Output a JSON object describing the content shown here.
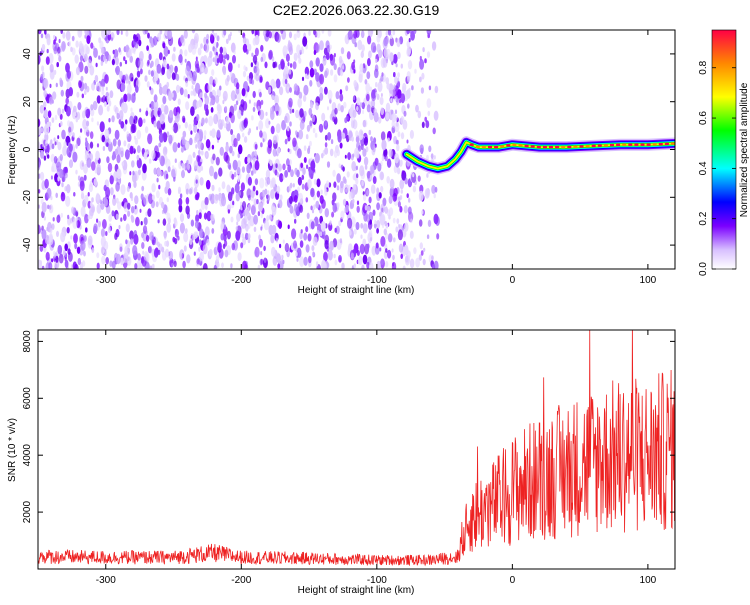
{
  "title": "C2E2.2026.063.22.30.G19",
  "chart_data": [
    {
      "type": "heatmap",
      "xlabel": "Height of straight line (km)",
      "ylabel": "Frequency (Hz)",
      "xlim": [
        -350,
        120
      ],
      "ylim": [
        -50,
        50
      ],
      "xticks": [
        -300,
        -200,
        -100,
        0,
        100
      ],
      "yticks": [
        -40,
        -20,
        0,
        20,
        40
      ],
      "colorbar": {
        "label": "Normalized spectral amplitude",
        "range": [
          0,
          0.95
        ],
        "ticks": [
          0.0,
          0.2,
          0.4,
          0.6,
          0.8
        ],
        "tick_labels": [
          "0.0",
          "0.2",
          "0.4",
          "0.6",
          "0.8"
        ],
        "colormap": [
          "#ffffff",
          "#c8a6ff",
          "#7a00ff",
          "#0000ff",
          "#00ffff",
          "#00ff00",
          "#ffff00",
          "#ff8800",
          "#ff0044"
        ]
      },
      "noise_region_x": [
        -350,
        -55
      ],
      "trace": {
        "x": [
          -78,
          -70,
          -62,
          -55,
          -48,
          -42,
          -38,
          -34,
          -30,
          -25,
          -20,
          -10,
          0,
          20,
          40,
          60,
          80,
          100,
          120
        ],
        "y": [
          -2,
          -5,
          -7,
          -8,
          -7,
          -4,
          -1,
          3,
          2,
          1,
          1,
          1,
          2,
          1,
          1,
          1.5,
          2,
          2,
          2.5
        ]
      }
    },
    {
      "type": "line",
      "xlabel": "Height of straight line (km)",
      "ylabel": "SNR (10 * v/v)",
      "xlim": [
        -350,
        120
      ],
      "ylim": [
        0,
        8400
      ],
      "xticks": [
        -300,
        -200,
        -100,
        0,
        100
      ],
      "yticks": [
        2000,
        4000,
        6000,
        8000
      ],
      "series": [
        {
          "color": "#ee2222",
          "envelope_x": [
            -350,
            -300,
            -250,
            -220,
            -200,
            -150,
            -100,
            -60,
            -40,
            -30,
            -20,
            -10,
            0,
            20,
            40,
            60,
            80,
            100,
            120
          ],
          "envelope_y": [
            700,
            650,
            650,
            900,
            650,
            600,
            500,
            500,
            700,
            1800,
            2100,
            2400,
            2800,
            3200,
            3500,
            3800,
            4000,
            4000,
            4200
          ]
        }
      ]
    }
  ]
}
